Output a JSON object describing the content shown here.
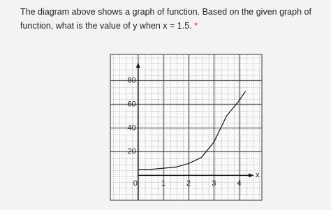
{
  "question": {
    "lines": [
      "The diagram above shows a graph of function. Based on the given graph of",
      "function, what is the value of y when x = 1.5."
    ],
    "required_mark": "*"
  },
  "chart_data": {
    "type": "line",
    "x_label": "x",
    "x": [
      0,
      0.5,
      1,
      1.5,
      2,
      2.5,
      3,
      3.5,
      4,
      4.25
    ],
    "series": [
      {
        "color": "#222222",
        "values": [
          5,
          5,
          6,
          7,
          10,
          15,
          28,
          50,
          63,
          71
        ]
      }
    ],
    "xlim": [
      -1.1,
      4.9
    ],
    "ylim": [
      -21,
      102
    ],
    "xticks": [
      0,
      1,
      2,
      3,
      4
    ],
    "yticks": [
      20,
      40,
      60,
      80
    ],
    "grid": true
  }
}
